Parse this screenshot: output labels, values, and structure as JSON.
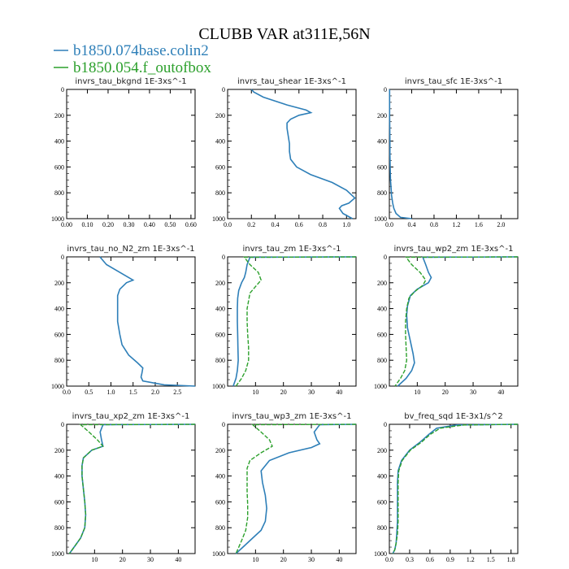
{
  "figure": {
    "title": "CLUBB VAR at311E,56N",
    "legend": [
      {
        "label": "b1850.074base.colin2",
        "color": "#2e7fb8"
      },
      {
        "label": "b1850.054.f_outofbox",
        "color": "#2ca02c"
      }
    ]
  },
  "chart_data": [
    {
      "type": "line",
      "title": "invrs_tau_bkgnd   1E-3xs^-1",
      "xlim": [
        0,
        0.62
      ],
      "ylim": [
        1000,
        0
      ],
      "xticks": [
        "0.00",
        "0.10",
        "0.20",
        "0.30",
        "0.40",
        "0.50",
        "0.60"
      ],
      "xtick_values": [
        0,
        0.1,
        0.2,
        0.3,
        0.4,
        0.5,
        0.6
      ],
      "yticks": [
        "0",
        "200",
        "400",
        "600",
        "800",
        "1000"
      ],
      "series": []
    },
    {
      "type": "line",
      "title": "invrs_tau_shear   1E-3xs^-1",
      "xlim": [
        0,
        1.08
      ],
      "ylim": [
        1000,
        0
      ],
      "xticks": [
        "0.0",
        "0.2",
        "0.4",
        "0.6",
        "0.8",
        "1.0"
      ],
      "xtick_values": [
        0,
        0.2,
        0.4,
        0.6,
        0.8,
        1.0
      ],
      "yticks": [
        "0",
        "200",
        "400",
        "600",
        "800",
        "1000"
      ],
      "series": [
        {
          "name": "b1850.074base.colin2",
          "color": "#2e7fb8",
          "x": [
            0.2,
            0.22,
            0.3,
            0.5,
            0.66,
            0.7,
            0.6,
            0.53,
            0.5,
            0.5,
            0.51,
            0.52,
            0.52,
            0.53,
            0.58,
            0.7,
            0.88,
            1.0,
            1.07,
            1.02,
            0.96,
            0.94,
            0.97,
            1.05
          ],
          "y": [
            0,
            20,
            60,
            120,
            160,
            180,
            200,
            230,
            260,
            300,
            360,
            420,
            480,
            540,
            600,
            660,
            720,
            780,
            840,
            880,
            900,
            920,
            960,
            1000
          ]
        }
      ]
    },
    {
      "type": "line",
      "title": "invrs_tau_sfc   1E-3xs^-1",
      "xlim": [
        0,
        2.3
      ],
      "ylim": [
        1000,
        0
      ],
      "xticks": [
        "0.0",
        "0.4",
        "0.8",
        "1.2",
        "1.6",
        "2.0"
      ],
      "xtick_values": [
        0,
        0.4,
        0.8,
        1.2,
        1.6,
        2.0
      ],
      "yticks": [
        "0",
        "200",
        "400",
        "600",
        "800",
        "1000"
      ],
      "series": [
        {
          "name": "b1850.074base.colin2",
          "color": "#2e7fb8",
          "x": [
            0.005,
            0.005,
            0.01,
            0.01,
            0.015,
            0.02,
            0.03,
            0.04,
            0.06,
            0.08,
            0.12,
            0.2,
            0.4
          ],
          "y": [
            0,
            200,
            400,
            500,
            600,
            700,
            760,
            820,
            880,
            920,
            960,
            990,
            1000
          ]
        }
      ]
    },
    {
      "type": "line",
      "title": "invrs_tau_no_N2_zm   1E-3xs^-1",
      "xlim": [
        0,
        2.9
      ],
      "ylim": [
        1000,
        0
      ],
      "xticks": [
        "0.0",
        "0.5",
        "1.0",
        "1.5",
        "2.0",
        "2.5"
      ],
      "xtick_values": [
        0,
        0.5,
        1.0,
        1.5,
        2.0,
        2.5
      ],
      "yticks": [
        "0",
        "200",
        "400",
        "600",
        "800",
        "1000"
      ],
      "series": [
        {
          "name": "b1850.074base.colin2",
          "color": "#2e7fb8",
          "x": [
            0.75,
            0.9,
            1.2,
            1.4,
            1.5,
            1.35,
            1.2,
            1.15,
            1.15,
            1.15,
            1.2,
            1.25,
            1.4,
            1.6,
            1.72,
            1.7,
            1.68,
            1.72,
            2.2,
            2.9
          ],
          "y": [
            0,
            60,
            120,
            160,
            180,
            200,
            250,
            300,
            400,
            500,
            600,
            680,
            760,
            820,
            860,
            900,
            930,
            960,
            990,
            1000
          ]
        }
      ]
    },
    {
      "type": "line",
      "title": "invrs_tau_zm   1E-3xs^-1",
      "xlim": [
        0,
        46
      ],
      "ylim": [
        1000,
        0
      ],
      "xticks": [
        "10",
        "20",
        "30",
        "40"
      ],
      "xtick_values": [
        10,
        20,
        30,
        40
      ],
      "yticks": [
        "0",
        "200",
        "400",
        "600",
        "800",
        "1000"
      ],
      "series": [
        {
          "name": "b1850.074base.colin2",
          "color": "#2e7fb8",
          "x": [
            46,
            8,
            7,
            6.5,
            6,
            5,
            4,
            3.6,
            3.5,
            3.5,
            3.6,
            3.7,
            3.8,
            3.5,
            3,
            2
          ],
          "y": [
            0,
            3,
            60,
            120,
            160,
            200,
            260,
            320,
            400,
            500,
            600,
            700,
            800,
            880,
            940,
            1000
          ]
        },
        {
          "name": "b1850.054.f_outofbox",
          "color": "#2ca02c",
          "x": [
            46,
            6,
            8,
            11,
            12,
            10,
            8,
            7.5,
            7,
            7,
            7.2,
            7.5,
            7.5,
            6.5,
            5,
            3
          ],
          "y": [
            0,
            3,
            60,
            120,
            180,
            230,
            280,
            340,
            400,
            500,
            600,
            700,
            800,
            880,
            940,
            1000
          ]
        }
      ]
    },
    {
      "type": "line",
      "title": "invrs_tau_wp2_zm   1E-3xs^-1",
      "xlim": [
        0,
        46
      ],
      "ylim": [
        1000,
        0
      ],
      "xticks": [
        "10",
        "20",
        "30",
        "40"
      ],
      "xtick_values": [
        10,
        20,
        30,
        40
      ],
      "yticks": [
        "0",
        "200",
        "400",
        "600",
        "800",
        "1000"
      ],
      "series": [
        {
          "name": "b1850.074base.colin2",
          "color": "#2e7fb8",
          "x": [
            46,
            12,
            13,
            14,
            15,
            14,
            10,
            7.5,
            6.5,
            6.2,
            6.5,
            7.5,
            8.5,
            9,
            8,
            6,
            3
          ],
          "y": [
            0,
            3,
            60,
            120,
            160,
            200,
            250,
            300,
            380,
            450,
            550,
            650,
            750,
            820,
            880,
            940,
            1000
          ]
        },
        {
          "name": "b1850.054.f_outofbox",
          "color": "#2ca02c",
          "x": [
            46,
            6,
            8,
            11,
            13,
            12,
            9,
            7,
            6.2,
            5.8,
            5.8,
            6,
            6.2,
            5.5,
            4,
            2
          ],
          "y": [
            0,
            3,
            60,
            120,
            180,
            220,
            270,
            320,
            400,
            500,
            600,
            700,
            800,
            880,
            940,
            1000
          ]
        }
      ]
    },
    {
      "type": "line",
      "title": "invrs_tau_xp2_zm   1E-3xs^-1",
      "xlim": [
        0,
        46
      ],
      "ylim": [
        1000,
        0
      ],
      "xticks": [
        "10",
        "20",
        "30",
        "40"
      ],
      "xtick_values": [
        10,
        20,
        30,
        40
      ],
      "yticks": [
        "0",
        "200",
        "400",
        "600",
        "800",
        "1000"
      ],
      "series": [
        {
          "name": "b1850.074base.colin2",
          "color": "#2e7fb8",
          "x": [
            46,
            13,
            12,
            12.5,
            13,
            9,
            6,
            5.5,
            5.5,
            6,
            6.5,
            6.8,
            6.5,
            5,
            3,
            1
          ],
          "y": [
            0,
            3,
            60,
            120,
            170,
            200,
            260,
            320,
            400,
            500,
            600,
            700,
            800,
            880,
            940,
            1000
          ]
        },
        {
          "name": "b1850.054.f_outofbox",
          "color": "#2ca02c",
          "x": [
            46,
            5,
            8,
            11,
            13,
            9,
            6,
            5.5,
            5.5,
            6,
            6.5,
            6.8,
            6.5,
            5,
            3,
            1
          ],
          "y": [
            0,
            3,
            60,
            120,
            170,
            200,
            260,
            320,
            400,
            500,
            600,
            700,
            800,
            880,
            940,
            1000
          ]
        }
      ]
    },
    {
      "type": "line",
      "title": "invrs_tau_wp3_zm   1E-3xs^-1",
      "xlim": [
        0,
        46
      ],
      "ylim": [
        1000,
        0
      ],
      "xticks": [
        "10",
        "20",
        "30",
        "40"
      ],
      "xtick_values": [
        10,
        20,
        30,
        40
      ],
      "yticks": [
        "0",
        "200",
        "400",
        "600",
        "800",
        "1000"
      ],
      "series": [
        {
          "name": "b1850.074base.colin2",
          "color": "#2e7fb8",
          "x": [
            46,
            33,
            31,
            32,
            33,
            30,
            22,
            15,
            12,
            12.5,
            13.5,
            14,
            13.5,
            12,
            9,
            6,
            3
          ],
          "y": [
            0,
            3,
            60,
            120,
            150,
            180,
            220,
            280,
            360,
            450,
            550,
            650,
            750,
            820,
            880,
            940,
            1000
          ]
        },
        {
          "name": "b1850.054.f_outofbox",
          "color": "#2ca02c",
          "x": [
            46,
            9,
            12,
            15,
            16,
            12,
            8,
            7,
            7,
            7,
            7.2,
            7.2,
            6.5,
            5,
            3
          ],
          "y": [
            0,
            3,
            60,
            120,
            170,
            220,
            280,
            340,
            420,
            520,
            620,
            720,
            820,
            900,
            1000
          ]
        }
      ]
    },
    {
      "type": "line",
      "title": "bv_freq_sqd   1E-3x1/s^2",
      "xlim": [
        0,
        1.9
      ],
      "ylim": [
        1000,
        0
      ],
      "xticks": [
        "0.0",
        "0.3",
        "0.6",
        "0.9",
        "1.2",
        "1.5",
        "1.8"
      ],
      "xtick_values": [
        0,
        0.3,
        0.6,
        0.9,
        1.2,
        1.5,
        1.8
      ],
      "yticks": [
        "0",
        "200",
        "400",
        "600",
        "800",
        "1000"
      ],
      "series": [
        {
          "name": "b1850.074base.colin2",
          "color": "#2e7fb8",
          "x": [
            1.9,
            1.0,
            0.7,
            0.58,
            0.45,
            0.3,
            0.18,
            0.13,
            0.12,
            0.12,
            0.12,
            0.12,
            0.11,
            0.1,
            0.08,
            0.05
          ],
          "y": [
            0,
            5,
            30,
            80,
            140,
            200,
            280,
            360,
            450,
            550,
            650,
            750,
            850,
            920,
            970,
            1000
          ]
        },
        {
          "name": "b1850.054.f_outofbox",
          "color": "#2ca02c",
          "x": [
            1.9,
            1.1,
            0.75,
            0.6,
            0.47,
            0.31,
            0.19,
            0.14,
            0.13,
            0.13,
            0.13,
            0.13,
            0.12,
            0.1,
            0.08,
            0.05
          ],
          "y": [
            0,
            5,
            30,
            80,
            140,
            200,
            280,
            360,
            450,
            550,
            650,
            750,
            850,
            920,
            970,
            1000
          ]
        }
      ]
    }
  ]
}
